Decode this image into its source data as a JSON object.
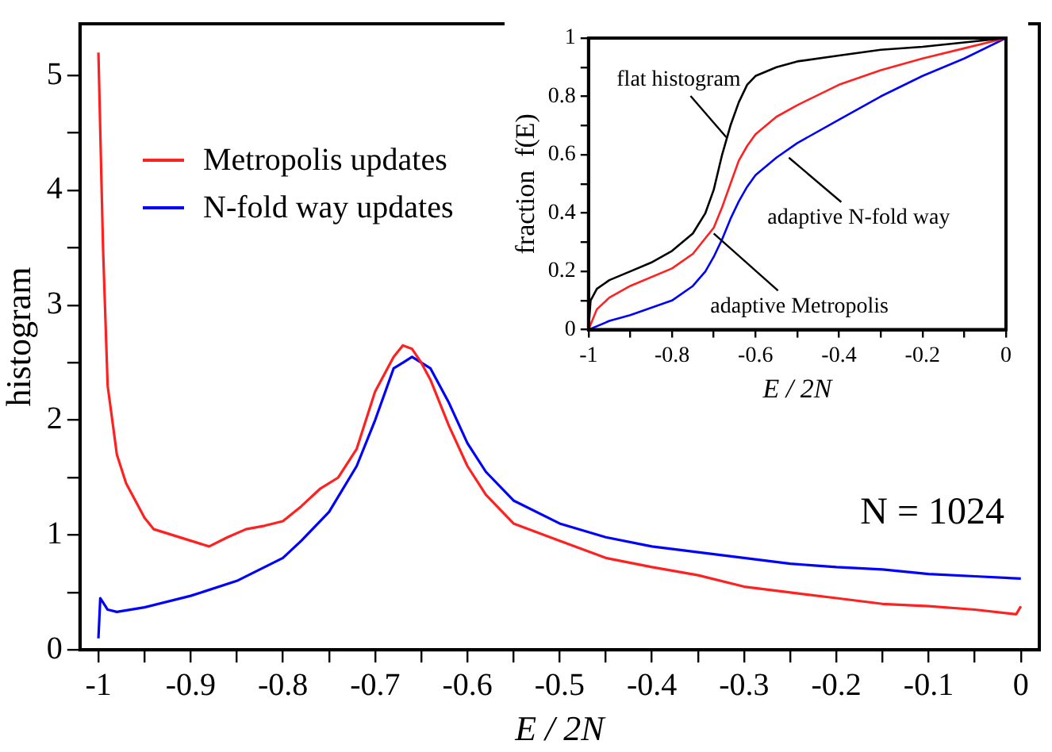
{
  "chart_data": [
    {
      "type": "line",
      "xlabel": "E / 2N",
      "ylabel": "histogram",
      "xlim": [
        -1.02,
        0.02
      ],
      "ylim": [
        0,
        5.45
      ],
      "xticks": [
        -1,
        {
          "value": -0.95,
          "label": null
        },
        -0.9,
        {
          "value": -0.85,
          "label": null
        },
        -0.8,
        {
          "value": -0.75,
          "label": null
        },
        -0.7,
        {
          "value": -0.65,
          "label": null
        },
        -0.6,
        {
          "value": -0.55,
          "label": null
        },
        -0.5,
        {
          "value": -0.45,
          "label": null
        },
        -0.4,
        {
          "value": -0.35,
          "label": null
        },
        -0.3,
        {
          "value": -0.25,
          "label": null
        },
        -0.2,
        {
          "value": -0.15,
          "label": null
        },
        -0.1,
        {
          "value": -0.05,
          "label": null
        },
        0
      ],
      "yticks": [
        0,
        {
          "value": 0.5,
          "label": null
        },
        1,
        {
          "value": 1.5,
          "label": null
        },
        2,
        {
          "value": 2.5,
          "label": null
        },
        3,
        {
          "value": 3.5,
          "label": null
        },
        4,
        {
          "value": 4.5,
          "label": null
        },
        5
      ],
      "grid": false,
      "legend": "top left",
      "marker": "none",
      "line_style": "solid",
      "annotations": [
        "N = 1024"
      ],
      "series": [
        {
          "name": "Metropolis updates",
          "color": "#ff2020",
          "x": [
            -1,
            -0.995,
            -0.99,
            -0.985,
            -0.98,
            -0.97,
            -0.96,
            -0.95,
            -0.94,
            -0.92,
            -0.9,
            -0.88,
            -0.86,
            -0.84,
            -0.82,
            -0.8,
            -0.78,
            -0.76,
            -0.74,
            -0.72,
            -0.7,
            -0.68,
            -0.67,
            -0.66,
            -0.65,
            -0.64,
            -0.62,
            -0.6,
            -0.58,
            -0.55,
            -0.5,
            -0.45,
            -0.4,
            -0.35,
            -0.3,
            -0.25,
            -0.2,
            -0.15,
            -0.1,
            -0.05,
            -0.005,
            0
          ],
          "values": [
            5.2,
            3.5,
            2.3,
            2.0,
            1.7,
            1.45,
            1.3,
            1.15,
            1.05,
            1.0,
            0.95,
            0.9,
            0.98,
            1.05,
            1.08,
            1.12,
            1.25,
            1.4,
            1.5,
            1.75,
            2.25,
            2.55,
            2.65,
            2.62,
            2.5,
            2.35,
            1.95,
            1.6,
            1.35,
            1.1,
            0.95,
            0.8,
            0.72,
            0.65,
            0.55,
            0.5,
            0.45,
            0.4,
            0.38,
            0.35,
            0.31,
            0.38
          ]
        },
        {
          "name": "N-fold way updates",
          "color": "#0000ff",
          "x": [
            -1,
            -0.998,
            -0.99,
            -0.98,
            -0.95,
            -0.9,
            -0.85,
            -0.8,
            -0.78,
            -0.75,
            -0.72,
            -0.7,
            -0.68,
            -0.66,
            -0.64,
            -0.62,
            -0.6,
            -0.58,
            -0.55,
            -0.5,
            -0.45,
            -0.4,
            -0.35,
            -0.3,
            -0.25,
            -0.2,
            -0.15,
            -0.1,
            -0.05,
            0
          ],
          "values": [
            0.1,
            0.45,
            0.35,
            0.33,
            0.37,
            0.47,
            0.6,
            0.8,
            0.95,
            1.2,
            1.6,
            2.0,
            2.45,
            2.55,
            2.45,
            2.15,
            1.8,
            1.55,
            1.3,
            1.1,
            0.98,
            0.9,
            0.85,
            0.8,
            0.75,
            0.72,
            0.7,
            0.66,
            0.64,
            0.62
          ]
        }
      ]
    },
    {
      "type": "line",
      "xlabel": "E / 2N",
      "ylabel": "fraction  f(E)",
      "xlim": [
        -1,
        0
      ],
      "ylim": [
        0,
        1
      ],
      "xticks": [
        -1,
        {
          "value": -0.9,
          "label": null
        },
        -0.8,
        {
          "value": -0.7,
          "label": null
        },
        -0.6,
        {
          "value": -0.5,
          "label": null
        },
        -0.4,
        {
          "value": -0.3,
          "label": null
        },
        -0.2,
        {
          "value": -0.1,
          "label": null
        },
        0
      ],
      "yticks": [
        0,
        {
          "value": 0.1,
          "label": null
        },
        0.2,
        {
          "value": 0.3,
          "label": null
        },
        0.4,
        {
          "value": 0.5,
          "label": null
        },
        0.6,
        {
          "value": 0.7,
          "label": null
        },
        0.8,
        {
          "value": 0.9,
          "label": null
        },
        1
      ],
      "grid": false,
      "marker": "none",
      "line_style": "solid",
      "annotations": [
        {
          "text": "flat histogram",
          "x": -0.67,
          "y": 0.66
        },
        {
          "text": "adaptive N-fold way",
          "x": -0.52,
          "y": 0.59
        },
        {
          "text": "adaptive Metropolis",
          "x": -0.7,
          "y": 0.33
        }
      ],
      "series": [
        {
          "color": "#000000",
          "x": [
            -1,
            -0.995,
            -0.98,
            -0.95,
            -0.9,
            -0.85,
            -0.8,
            -0.75,
            -0.72,
            -0.7,
            -0.68,
            -0.66,
            -0.64,
            -0.62,
            -0.6,
            -0.55,
            -0.5,
            -0.4,
            -0.3,
            -0.2,
            -0.1,
            0
          ],
          "values": [
            0,
            0.1,
            0.14,
            0.17,
            0.2,
            0.23,
            0.27,
            0.33,
            0.4,
            0.48,
            0.6,
            0.7,
            0.78,
            0.84,
            0.87,
            0.9,
            0.92,
            0.94,
            0.96,
            0.97,
            0.985,
            1
          ]
        },
        {
          "color": "#ff2020",
          "x": [
            -1,
            -0.98,
            -0.95,
            -0.9,
            -0.8,
            -0.75,
            -0.7,
            -0.68,
            -0.66,
            -0.64,
            -0.62,
            -0.6,
            -0.55,
            -0.5,
            -0.4,
            -0.3,
            -0.2,
            -0.1,
            0
          ],
          "values": [
            0,
            0.07,
            0.11,
            0.15,
            0.21,
            0.26,
            0.35,
            0.42,
            0.5,
            0.58,
            0.63,
            0.67,
            0.73,
            0.77,
            0.84,
            0.89,
            0.93,
            0.965,
            1
          ]
        },
        {
          "color": "#0000ff",
          "x": [
            -1,
            -0.95,
            -0.9,
            -0.8,
            -0.75,
            -0.72,
            -0.7,
            -0.68,
            -0.66,
            -0.64,
            -0.62,
            -0.6,
            -0.55,
            -0.5,
            -0.4,
            -0.3,
            -0.2,
            -0.1,
            0
          ],
          "values": [
            0,
            0.03,
            0.05,
            0.1,
            0.15,
            0.2,
            0.25,
            0.31,
            0.38,
            0.44,
            0.49,
            0.53,
            0.59,
            0.64,
            0.72,
            0.8,
            0.87,
            0.93,
            1
          ]
        }
      ]
    }
  ]
}
